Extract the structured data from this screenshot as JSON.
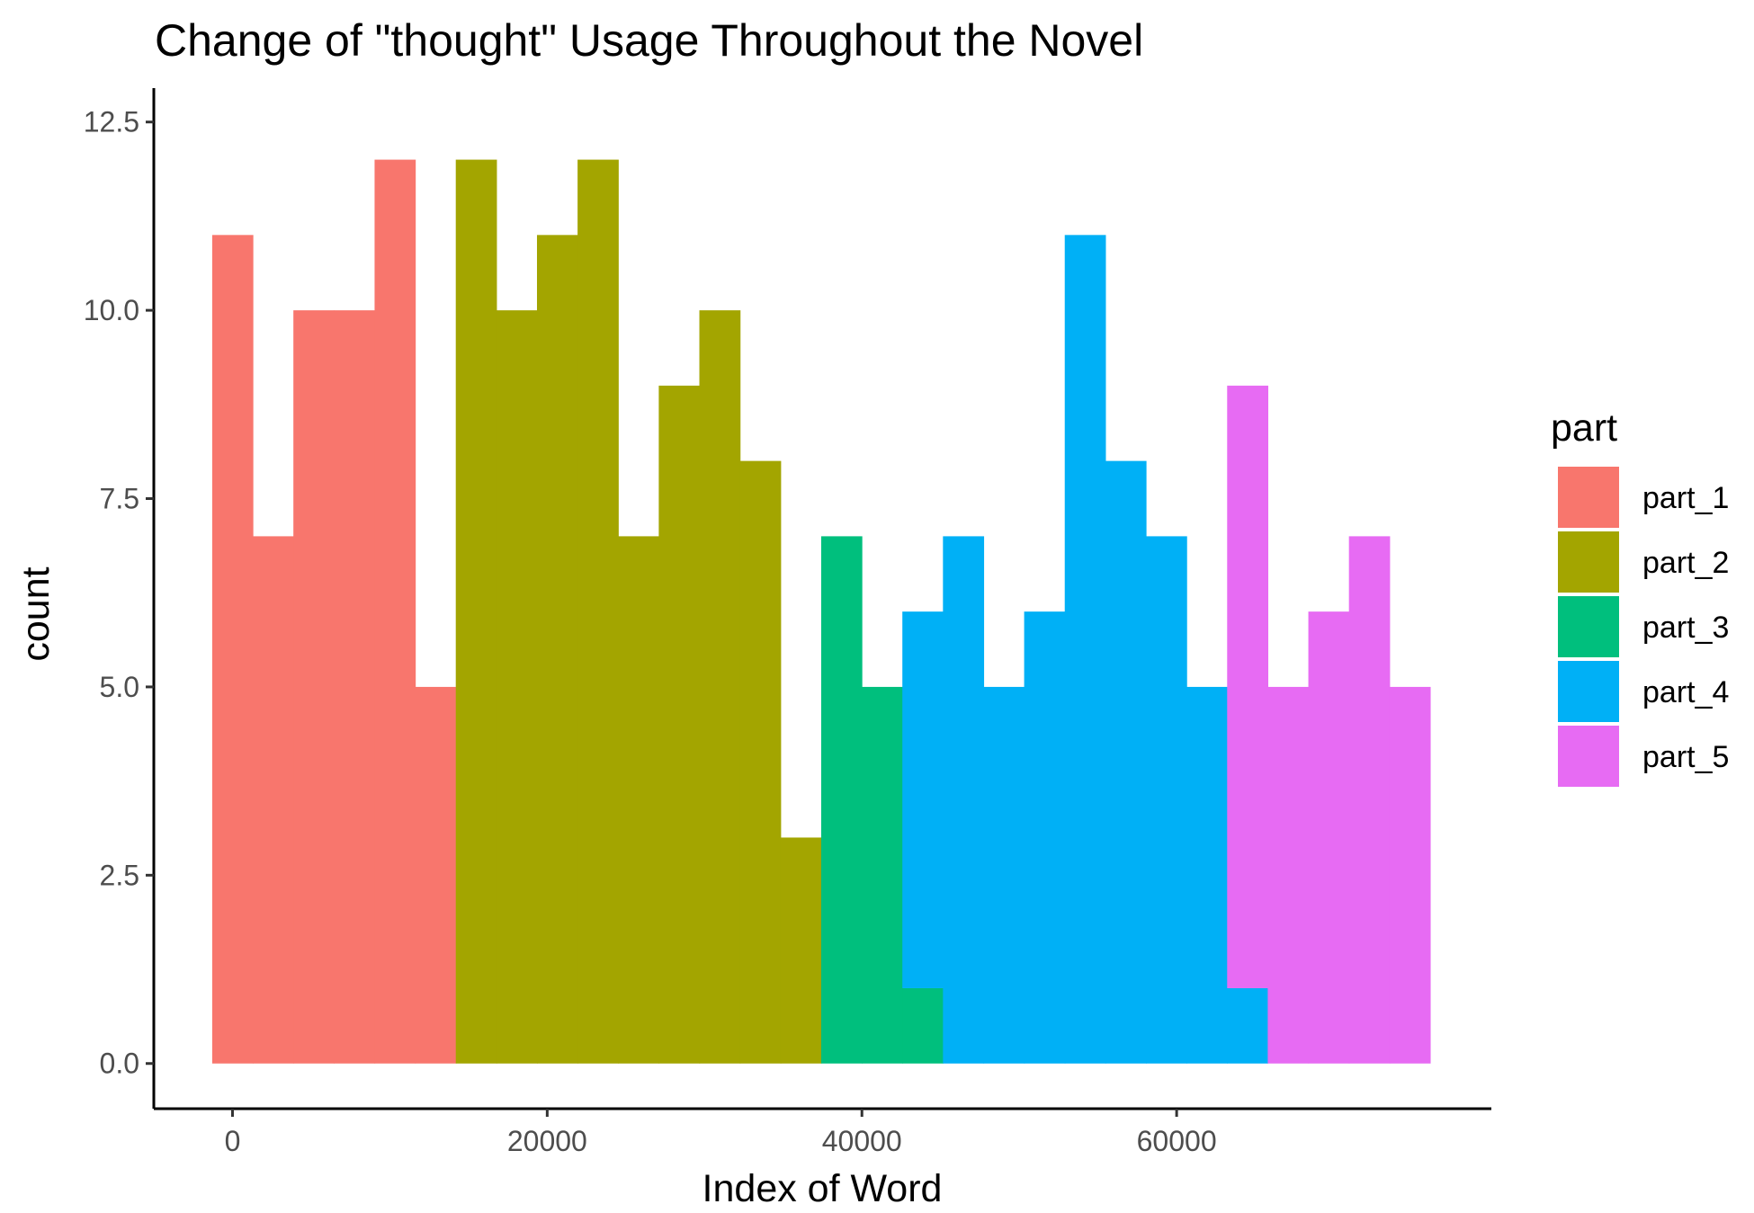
{
  "chart_data": {
    "type": "bar",
    "title": "Change of \"thought\" Usage Throughout the Novel",
    "xlabel": "Index of Word",
    "ylabel": "count",
    "xlim": [
      -5000,
      80000
    ],
    "ylim": [
      -0.6,
      12.95
    ],
    "x_ticks": [
      {
        "value": 0,
        "label": "0"
      },
      {
        "value": 20000,
        "label": "20000"
      },
      {
        "value": 40000,
        "label": "40000"
      },
      {
        "value": 60000,
        "label": "60000"
      }
    ],
    "y_ticks": [
      {
        "value": 0,
        "label": "0.0"
      },
      {
        "value": 2.5,
        "label": "2.5"
      },
      {
        "value": 5,
        "label": "5.0"
      },
      {
        "value": 7.5,
        "label": "7.5"
      },
      {
        "value": 10,
        "label": "10.0"
      },
      {
        "value": 12.5,
        "label": "12.5"
      }
    ],
    "grid": false,
    "legend": {
      "title": "part",
      "placement": "right"
    },
    "series": [
      {
        "name": "part_1",
        "color": "#F8766D",
        "bins": [
          {
            "x0": -1290,
            "x1": 1290,
            "count": 11
          },
          {
            "x0": 1290,
            "x1": 3870,
            "count": 7
          },
          {
            "x0": 3870,
            "x1": 6450,
            "count": 10
          },
          {
            "x0": 6450,
            "x1": 9030,
            "count": 10
          },
          {
            "x0": 9030,
            "x1": 11610,
            "count": 12
          },
          {
            "x0": 11610,
            "x1": 14190,
            "count": 5
          }
        ]
      },
      {
        "name": "part_2",
        "color": "#A3A500",
        "bins": [
          {
            "x0": 14190,
            "x1": 16770,
            "count": 12
          },
          {
            "x0": 16770,
            "x1": 19350,
            "count": 10
          },
          {
            "x0": 19350,
            "x1": 21930,
            "count": 11
          },
          {
            "x0": 21930,
            "x1": 24510,
            "count": 12
          },
          {
            "x0": 24510,
            "x1": 27090,
            "count": 7
          },
          {
            "x0": 27090,
            "x1": 29670,
            "count": 9
          },
          {
            "x0": 29670,
            "x1": 32250,
            "count": 10
          },
          {
            "x0": 32250,
            "x1": 34830,
            "count": 8
          },
          {
            "x0": 34830,
            "x1": 37410,
            "count": 3
          }
        ]
      },
      {
        "name": "part_3",
        "color": "#00BF7D",
        "bins": [
          {
            "x0": 37410,
            "x1": 39990,
            "count": 7
          },
          {
            "x0": 39990,
            "x1": 42570,
            "count": 5
          },
          {
            "x0": 42570,
            "x1": 45150,
            "count": 1
          }
        ]
      },
      {
        "name": "part_4",
        "color": "#00B0F6",
        "bins": [
          {
            "x0": 42570,
            "x1": 45150,
            "count": 5
          },
          {
            "x0": 45150,
            "x1": 47730,
            "count": 7
          },
          {
            "x0": 47730,
            "x1": 50310,
            "count": 5
          },
          {
            "x0": 50310,
            "x1": 52890,
            "count": 6
          },
          {
            "x0": 52890,
            "x1": 55470,
            "count": 11
          },
          {
            "x0": 55470,
            "x1": 58050,
            "count": 8
          },
          {
            "x0": 58050,
            "x1": 60630,
            "count": 7
          },
          {
            "x0": 60630,
            "x1": 63210,
            "count": 5
          },
          {
            "x0": 63210,
            "x1": 65790,
            "count": 1
          }
        ]
      },
      {
        "name": "part_5",
        "color": "#E76BF3",
        "bins": [
          {
            "x0": 63210,
            "x1": 65790,
            "count": 8
          },
          {
            "x0": 65790,
            "x1": 68370,
            "count": 5
          },
          {
            "x0": 68370,
            "x1": 70950,
            "count": 6
          },
          {
            "x0": 70950,
            "x1": 73530,
            "count": 7
          },
          {
            "x0": 73530,
            "x1": 76110,
            "count": 5
          }
        ]
      }
    ]
  }
}
